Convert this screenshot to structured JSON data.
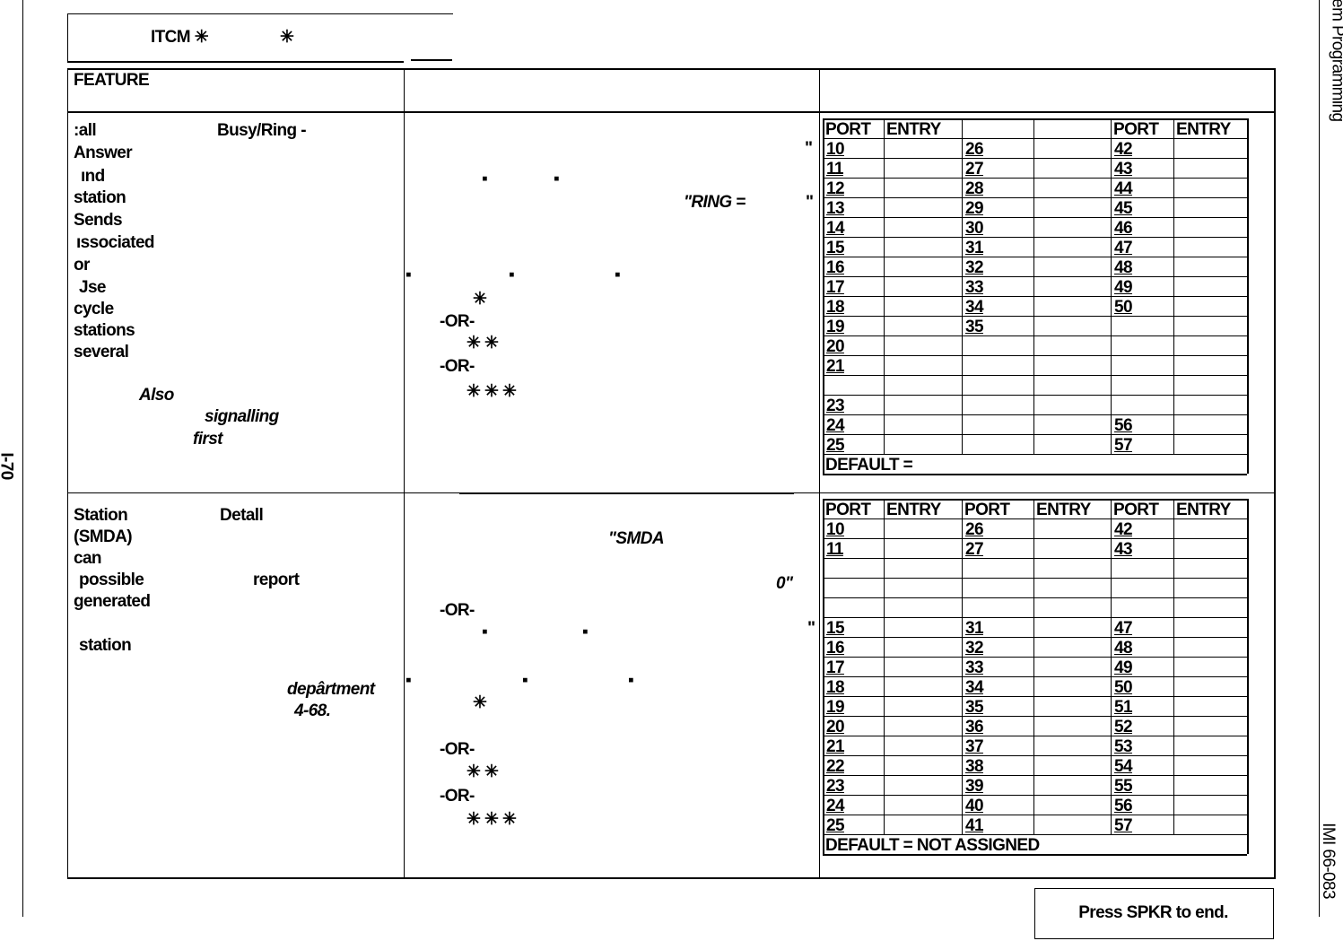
{
  "header": {
    "title": "ITCM ✳",
    "star": "✳"
  },
  "side": {
    "left": "I-70",
    "right": "System Programming",
    "code": "IMI 66-083"
  },
  "table": {
    "header": "FEATURE",
    "rows": [
      {
        "feature": [
          ":all",
          "Busy/Ring -",
          "Answer",
          "ınd",
          "station",
          "Sends",
          "ıssociated",
          "or",
          "Jse",
          "cycle",
          "stations",
          "several",
          "Also",
          "signalling",
          "first"
        ],
        "procedure": [
          "\"",
          "▪",
          "▪",
          "\"RING =",
          "\"",
          "▪",
          "▪",
          "▪",
          "✳",
          "-OR-",
          "✳ ✳",
          "-OR-",
          "✳ ✳ ✳"
        ],
        "ports": {
          "header": [
            "PORT",
            "ENTRY",
            null,
            null,
            "PORT",
            "ENTRY"
          ],
          "rows": [
            [
              "10",
              "26",
              "42"
            ],
            [
              "11",
              "27",
              "43"
            ],
            [
              "12",
              "28",
              "44"
            ],
            [
              "13",
              "29",
              "45"
            ],
            [
              "14",
              "30",
              "46"
            ],
            [
              "15",
              "31",
              "47"
            ],
            [
              "16",
              "32",
              "48"
            ],
            [
              "17",
              "33",
              "49"
            ],
            [
              "18",
              "34",
              "50"
            ],
            [
              "19",
              "35",
              null
            ],
            [
              "20",
              null,
              null
            ],
            [
              "21",
              null,
              null
            ],
            [
              null,
              null,
              null
            ],
            [
              "23",
              null,
              null
            ],
            [
              "24",
              null,
              "56"
            ],
            [
              "25",
              null,
              "57"
            ]
          ],
          "default": "DEFAULT ="
        }
      },
      {
        "feature": [
          "Station",
          "Detall",
          "(SMDA)",
          "can",
          "possible",
          "report",
          "generated",
          "station",
          "depârtment",
          "4-68."
        ],
        "procedure": [
          "\"SMDA",
          "0\"",
          "-OR-",
          "▪",
          "▪",
          "\"",
          "▪",
          "▪",
          "▪",
          "✳",
          "-OR-",
          "✳ ✳",
          "-OR-",
          "✳ ✳ ✳"
        ],
        "ports": {
          "header": [
            "PORT",
            "ENTRY",
            "PORT",
            "ENTRY",
            "PORT",
            "ENTRY"
          ],
          "rows": [
            [
              "10",
              "26",
              "42"
            ],
            [
              "11",
              "27",
              "43"
            ],
            [
              null,
              null,
              null
            ],
            [
              null,
              null,
              null
            ],
            [
              null,
              null,
              null
            ],
            [
              "15",
              "31",
              "47"
            ],
            [
              "16",
              "32",
              "48"
            ],
            [
              "17",
              "33",
              "49"
            ],
            [
              "18",
              "34",
              "50"
            ],
            [
              "19",
              "35",
              "51"
            ],
            [
              "20",
              "36",
              "52"
            ],
            [
              "21",
              "37",
              "53"
            ],
            [
              "22",
              "38",
              "54"
            ],
            [
              "23",
              "39",
              "55"
            ],
            [
              "24",
              "40",
              "56"
            ],
            [
              "25",
              "41",
              "57"
            ]
          ],
          "default": "DEFAULT = NOT ASSIGNED"
        }
      }
    ]
  },
  "button": "Press SPKR to end."
}
